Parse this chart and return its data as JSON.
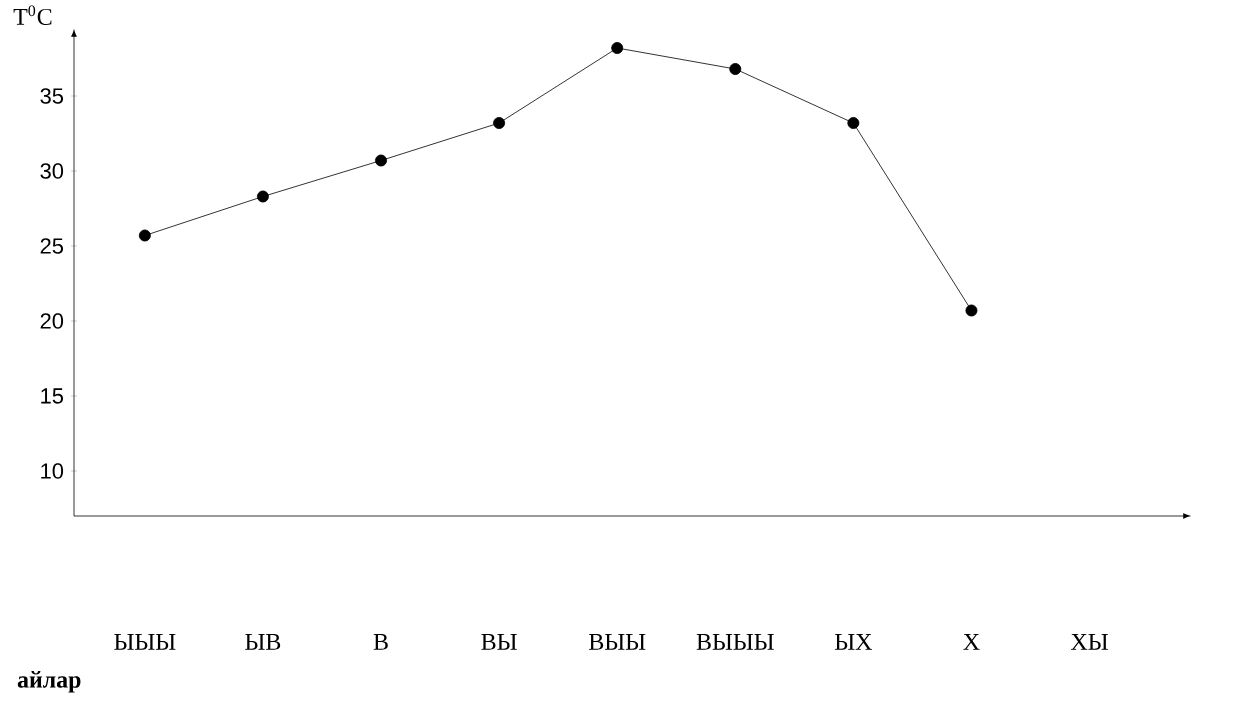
{
  "chart_data": {
    "type": "line",
    "xlabel": "айлар",
    "ylabel": "T$^{0}$C",
    "categories": [
      "ЫЫЫ",
      "ЫВ",
      "В",
      "ВЫ",
      "ВЫЫ",
      "ВЫЫЫ",
      "ЫХ",
      "Х",
      "ХЫ"
    ],
    "series": [
      {
        "color": "#000000",
        "values": [
          25.7,
          28.3,
          30.7,
          33.2,
          38.2,
          36.8,
          33.2,
          20.7,
          null
        ]
      }
    ],
    "ylim": [
      7,
      39
    ],
    "yticks": [
      10,
      15,
      20,
      25,
      30,
      35
    ],
    "grid": false,
    "marker": "circle",
    "line_style": "solid"
  }
}
